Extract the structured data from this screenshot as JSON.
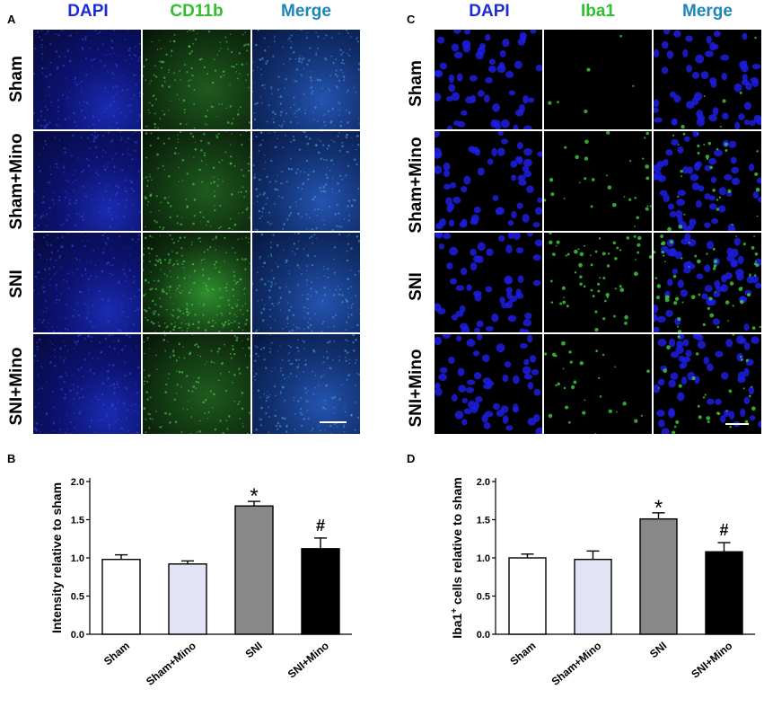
{
  "panels": {
    "A": {
      "letter": "A",
      "columns": [
        "DAPI",
        "CD11b",
        "Merge"
      ],
      "column_colors": [
        "#1f2bd9",
        "#2fbf2f",
        "#1c86b8"
      ],
      "rows": [
        "Sham",
        "Sham+Mino",
        "SNI",
        "SNI+Mino"
      ]
    },
    "C": {
      "letter": "C",
      "columns": [
        "DAPI",
        "Iba1",
        "Merge"
      ],
      "column_colors": [
        "#1f2bd9",
        "#2fbf2f",
        "#1c86b8"
      ],
      "rows": [
        "Sham",
        "Sham+Mino",
        "SNI",
        "SNI+Mino"
      ]
    },
    "B": {
      "letter": "B"
    },
    "D": {
      "letter": "D"
    }
  },
  "chart_data": [
    {
      "panel": "B",
      "type": "bar",
      "categories": [
        "Sham",
        "Sham+Mino",
        "SNI",
        "SNI+Mino"
      ],
      "values": [
        0.98,
        0.92,
        1.68,
        1.12
      ],
      "errors": [
        0.06,
        0.04,
        0.06,
        0.14
      ],
      "annotations": [
        "",
        "",
        "*",
        "#"
      ],
      "bar_colors": [
        "#ffffff",
        "#e3e3f6",
        "#888888",
        "#000000"
      ],
      "ylabel": "Intensity relative to sham",
      "xlabel": "",
      "ylim": [
        0,
        2.0
      ],
      "yticks": [
        "0.0",
        "0.5",
        "1.0",
        "1.5",
        "2.0"
      ]
    },
    {
      "panel": "D",
      "type": "bar",
      "categories": [
        "Sham",
        "Sham+Mino",
        "SNI",
        "SNI+Mino"
      ],
      "values": [
        1.0,
        0.98,
        1.51,
        1.08
      ],
      "errors": [
        0.05,
        0.11,
        0.08,
        0.12
      ],
      "annotations": [
        "",
        "",
        "*",
        "#"
      ],
      "bar_colors": [
        "#ffffff",
        "#e3e3f6",
        "#888888",
        "#000000"
      ],
      "ylabel_main": "Iba1",
      "ylabel_sup": "+",
      "ylabel_rest": " cells relative to sham",
      "xlabel": "",
      "ylim": [
        0,
        2.0
      ],
      "yticks": [
        "0.0",
        "0.5",
        "1.0",
        "1.5",
        "2.0"
      ]
    }
  ]
}
